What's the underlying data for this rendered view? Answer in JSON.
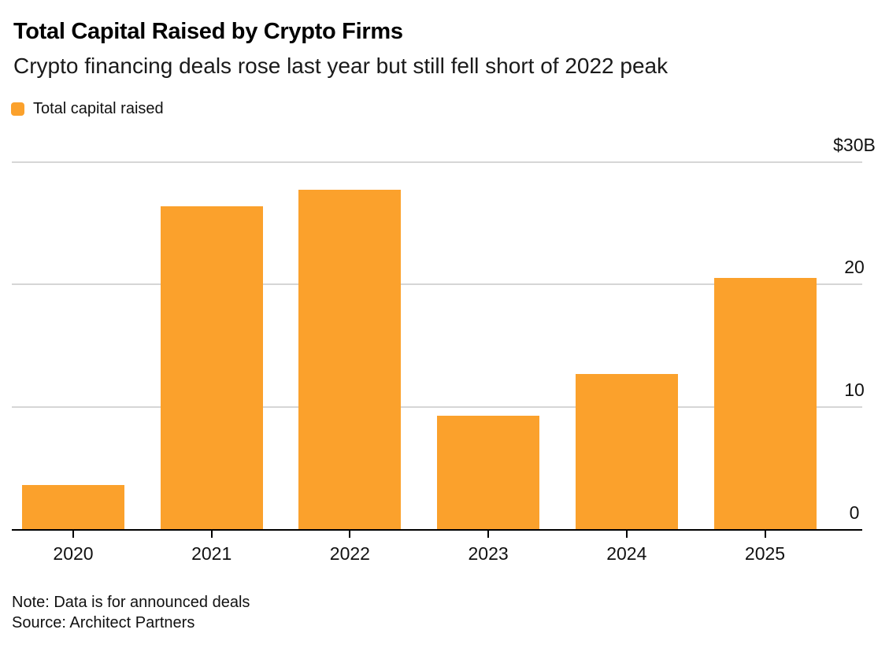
{
  "chart_data": {
    "type": "bar",
    "title": "Total Capital Raised by Crypto Firms",
    "subtitle": "Crypto financing deals rose last year but still fell short of 2022 peak",
    "legend": [
      {
        "label": "Total capital raised",
        "color": "#FBA12C"
      }
    ],
    "legend_position": "top-left",
    "categories": [
      "2020",
      "2021",
      "2022",
      "2023",
      "2024",
      "2025"
    ],
    "values": [
      3.6,
      26.4,
      27.7,
      9.3,
      12.7,
      20.5
    ],
    "unit": "billions USD",
    "ylim": [
      0,
      30
    ],
    "yticks": [
      {
        "value": 30,
        "label": "$30B"
      },
      {
        "value": 20,
        "label": "20"
      },
      {
        "value": 10,
        "label": "10"
      },
      {
        "value": 0,
        "label": "0"
      }
    ],
    "axis_side": "right",
    "grid": true,
    "bar_color": "#FBA12C",
    "gridline_color": "#D6D6D6",
    "axis_line_color": "#000000",
    "tick_color": "#000000",
    "note": "Note: Data is for announced deals",
    "source": "Source: Architect Partners"
  }
}
